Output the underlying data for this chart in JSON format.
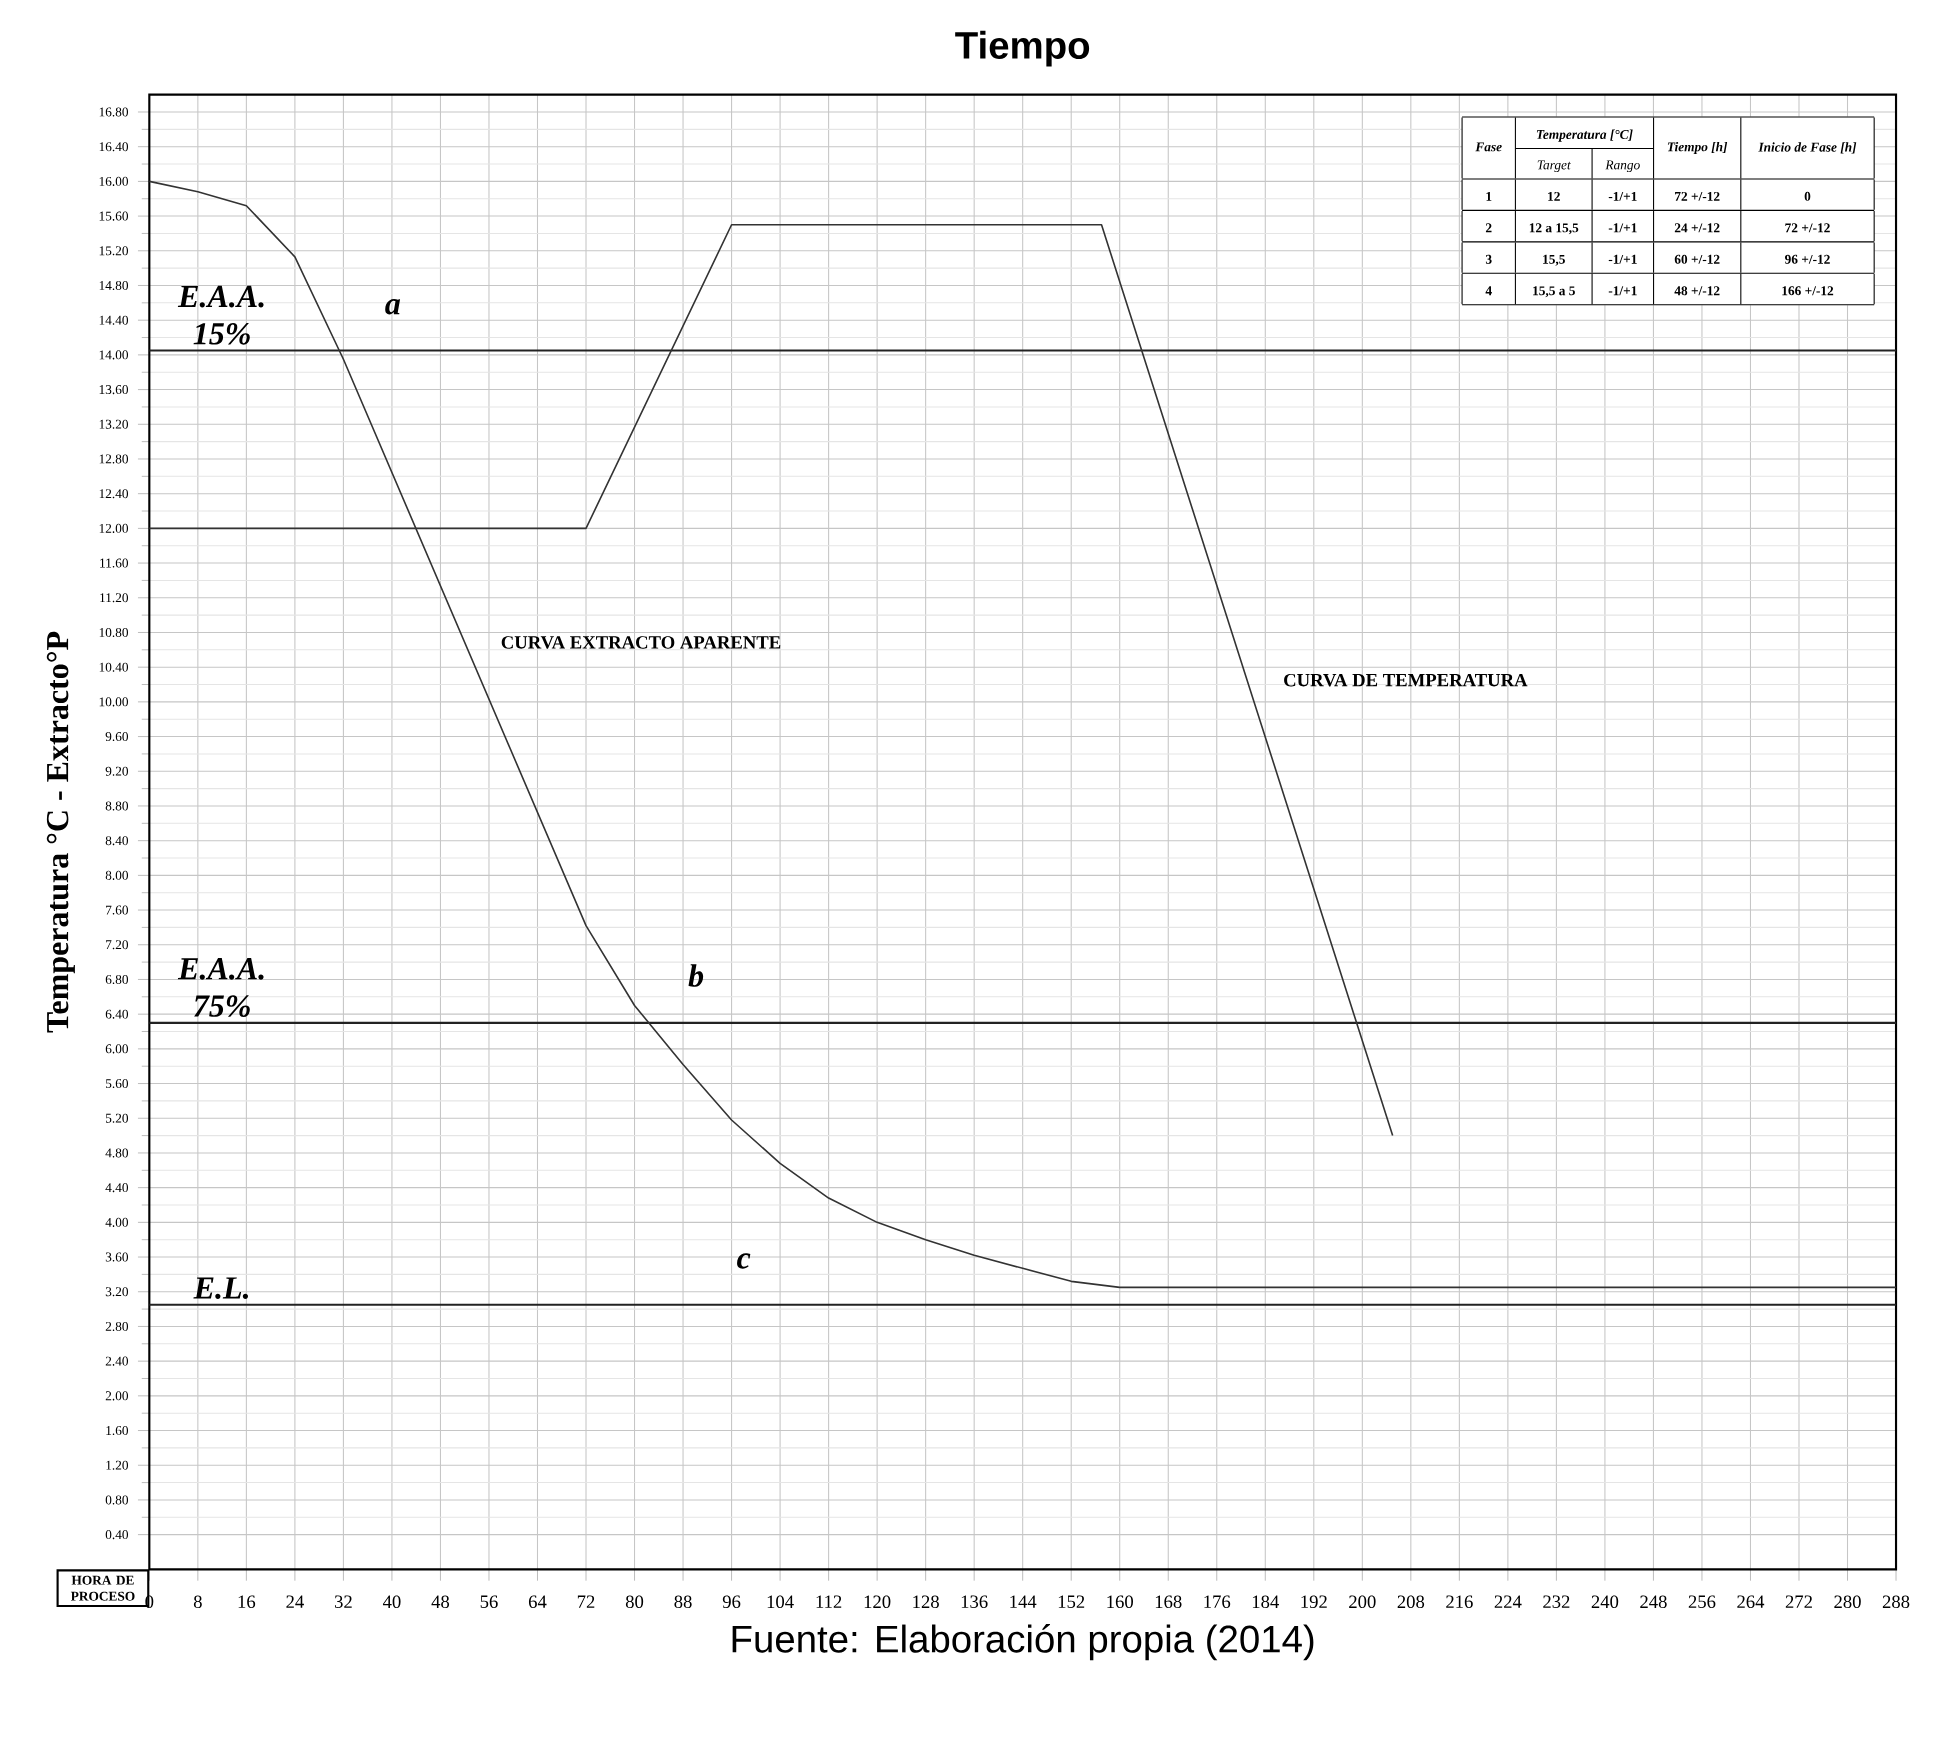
{
  "chart_data": {
    "type": "line",
    "title": "Tiempo",
    "xlabel": "HORA DE PROCESO",
    "ylabel": "Temperatura °C   -   Extracto°P",
    "xlim": [
      0,
      288
    ],
    "ylim": [
      0,
      17
    ],
    "xticks": [
      0,
      8,
      16,
      24,
      32,
      40,
      48,
      56,
      64,
      72,
      80,
      88,
      96,
      104,
      112,
      120,
      128,
      136,
      144,
      152,
      160,
      168,
      176,
      184,
      192,
      200,
      208,
      216,
      224,
      232,
      240,
      248,
      256,
      264,
      272,
      280,
      288
    ],
    "yticks": [
      {
        "value": 0.4,
        "label": "0.40"
      },
      {
        "value": 0.8,
        "label": "0.80"
      },
      {
        "value": 1.2,
        "label": "1.20"
      },
      {
        "value": 1.6,
        "label": "1.60"
      },
      {
        "value": 2.0,
        "label": "2.00"
      },
      {
        "value": 2.4,
        "label": "2.40"
      },
      {
        "value": 2.8,
        "label": "2.80"
      },
      {
        "value": 3.2,
        "label": "3.20"
      },
      {
        "value": 3.6,
        "label": "3.60"
      },
      {
        "value": 4.0,
        "label": "4.00"
      },
      {
        "value": 4.4,
        "label": "4.40"
      },
      {
        "value": 4.8,
        "label": "4.80"
      },
      {
        "value": 5.2,
        "label": "5.20"
      },
      {
        "value": 5.6,
        "label": "5.60"
      },
      {
        "value": 6.0,
        "label": "6.00"
      },
      {
        "value": 6.4,
        "label": "6.40"
      },
      {
        "value": 6.8,
        "label": "6.80"
      },
      {
        "value": 7.2,
        "label": "7.20"
      },
      {
        "value": 7.6,
        "label": "7.60"
      },
      {
        "value": 8.0,
        "label": "8.00"
      },
      {
        "value": 8.4,
        "label": "8.40"
      },
      {
        "value": 8.8,
        "label": "8.80"
      },
      {
        "value": 9.2,
        "label": "9.20"
      },
      {
        "value": 9.6,
        "label": "9.60"
      },
      {
        "value": 10.0,
        "label": "10.00"
      },
      {
        "value": 10.4,
        "label": "10.40"
      },
      {
        "value": 10.8,
        "label": "10.80"
      },
      {
        "value": 11.2,
        "label": "11.20"
      },
      {
        "value": 11.6,
        "label": "11.60"
      },
      {
        "value": 12.0,
        "label": "12.00"
      },
      {
        "value": 12.4,
        "label": "12.40"
      },
      {
        "value": 12.8,
        "label": "12.80"
      },
      {
        "value": 13.2,
        "label": "13.20"
      },
      {
        "value": 13.6,
        "label": "13.60"
      },
      {
        "value": 14.0,
        "label": "14.00"
      },
      {
        "value": 14.4,
        "label": "14.40"
      },
      {
        "value": 14.8,
        "label": "14.80"
      },
      {
        "value": 15.2,
        "label": "15.20"
      },
      {
        "value": 15.6,
        "label": "15.60"
      },
      {
        "value": 16.0,
        "label": "16.00"
      },
      {
        "value": 16.4,
        "label": "16.40"
      },
      {
        "value": 16.8,
        "label": "16.80"
      }
    ],
    "grid": true,
    "marker": "none",
    "line_style": "solid",
    "series": [
      {
        "name": "CURVA EXTRACTO APARENTE",
        "color": "#333333",
        "x": [
          0,
          8,
          16,
          24,
          32,
          72,
          80,
          88,
          96,
          104,
          112,
          120,
          128,
          136,
          144,
          152,
          160,
          288
        ],
        "values": [
          16.0,
          15.88,
          15.72,
          15.13,
          13.95,
          7.42,
          6.5,
          5.82,
          5.18,
          4.68,
          4.28,
          4.0,
          3.8,
          3.62,
          3.47,
          3.32,
          3.25,
          3.25
        ]
      },
      {
        "name": "CURVA DE TEMPERATURA",
        "color": "#333333",
        "x": [
          0,
          72,
          96,
          157,
          205
        ],
        "values": [
          12.0,
          12.0,
          15.5,
          15.5,
          5.0
        ]
      }
    ],
    "ref_lines": [
      {
        "axis": "y",
        "value": 14.05,
        "label": "E.A.A. 15%",
        "color": "#222222"
      },
      {
        "axis": "y",
        "value": 6.3,
        "label": "E.A.A. 75%",
        "color": "#222222"
      },
      {
        "axis": "y",
        "value": 3.05,
        "label": "E.L.",
        "color": "#222222"
      }
    ],
    "annotations": [
      {
        "text": "a",
        "x": 32,
        "y": 14.05
      },
      {
        "text": "b",
        "x": 82,
        "y": 6.3
      },
      {
        "text": "c",
        "x": 90,
        "y": 3.05
      },
      "Fase",
      "Temperatura [°C]",
      "Tiempo [h]",
      "Inicio de Fase [h]",
      "Target",
      "Rango",
      "1",
      "12",
      "-1/+1",
      "72 +/-12",
      "0",
      "2",
      "12 a 15,5",
      "-1/+1",
      "24 +/-12",
      "72 +/-12",
      "3",
      "15,5",
      "-1/+1",
      "60 +/-12",
      "96 +/-12",
      "4",
      "15,5 a 5",
      "-1/+1",
      "48 +/-12",
      "166 +/-12",
      "Fuente: Elaboración propia (2014)"
    ]
  }
}
